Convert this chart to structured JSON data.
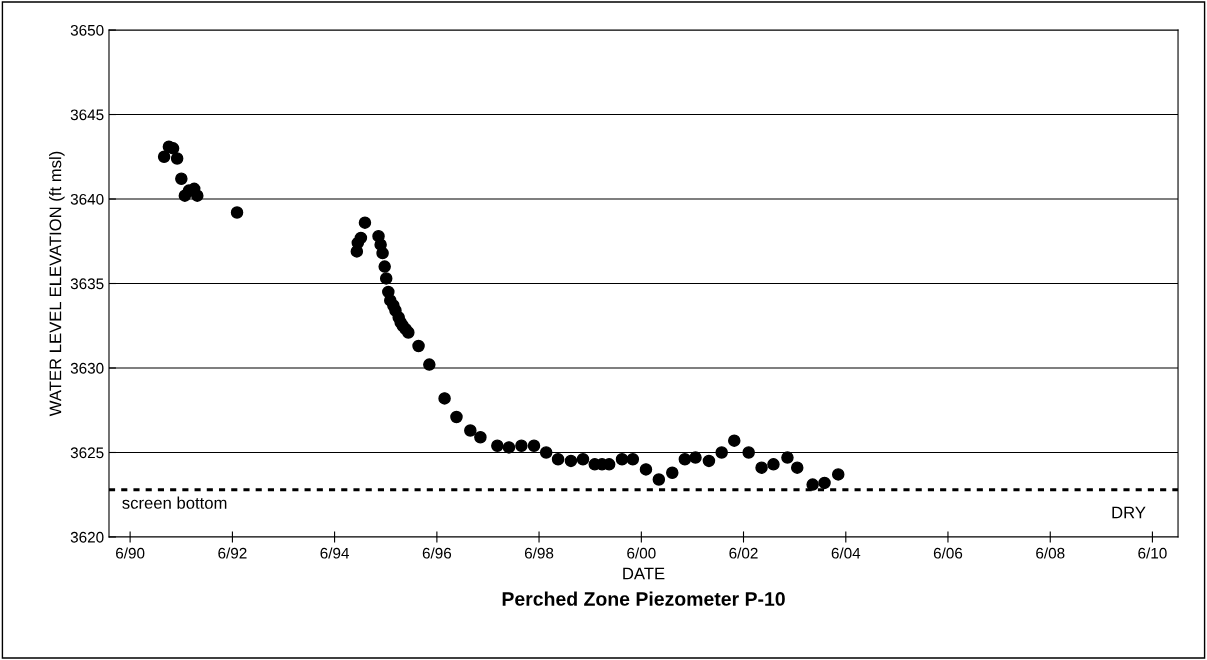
{
  "chart_data": {
    "type": "scatter",
    "title": "Perched Zone Piezometer P-10",
    "xlabel": "DATE",
    "ylabel": "WATER LEVEL ELEVATION (ft msl)",
    "x": [
      "1991-01-30",
      "1991-03-05",
      "1991-04-04",
      "1991-05-03",
      "1991-06-02",
      "1991-06-27",
      "1991-07-26",
      "1991-09-02",
      "1991-09-24",
      "1992-07-04",
      "1994-11-07",
      "1994-11-14",
      "1994-12-06",
      "1995-01-04",
      "1995-04-11",
      "1995-04-26",
      "1995-05-10",
      "1995-05-25",
      "1995-06-05",
      "1995-06-20",
      "1995-07-04",
      "1995-07-26",
      "1995-08-10",
      "1995-09-02",
      "1995-09-16",
      "1995-10-01",
      "1995-10-22",
      "1995-11-10",
      "1996-01-22",
      "1996-04-08",
      "1996-07-26",
      "1996-10-19",
      "1997-01-26",
      "1997-04-08",
      "1997-08-07",
      "1997-10-29",
      "1998-01-26",
      "1998-04-26",
      "1998-07-22",
      "1998-10-15",
      "1999-01-15",
      "1999-04-11",
      "1999-07-04",
      "1999-08-25",
      "1999-10-15",
      "2000-01-15",
      "2000-04-01",
      "2000-07-04",
      "2000-10-04",
      "2001-01-08",
      "2001-04-08",
      "2001-06-23",
      "2001-09-27",
      "2001-12-27",
      "2002-03-27",
      "2002-07-08",
      "2002-10-08",
      "2003-01-01",
      "2003-04-11",
      "2003-06-20",
      "2003-10-08",
      "2004-01-01",
      "2004-04-08"
    ],
    "values": [
      3642.5,
      3643.1,
      3643.0,
      3642.4,
      3641.2,
      3640.2,
      3640.5,
      3640.6,
      3640.2,
      3639.2,
      3636.9,
      3637.4,
      3637.7,
      3638.6,
      3637.8,
      3637.3,
      3636.8,
      3636.0,
      3635.3,
      3634.5,
      3634.0,
      3633.7,
      3633.4,
      3633.0,
      3632.7,
      3632.5,
      3632.3,
      3632.1,
      3631.3,
      3630.2,
      3628.2,
      3627.1,
      3626.3,
      3625.9,
      3625.4,
      3625.3,
      3625.4,
      3625.4,
      3625.0,
      3624.6,
      3624.5,
      3624.6,
      3624.3,
      3624.3,
      3624.3,
      3624.6,
      3624.6,
      3624.0,
      3623.4,
      3623.8,
      3624.6,
      3624.7,
      3624.5,
      3625.0,
      3625.7,
      3625.0,
      3624.1,
      3624.3,
      3624.7,
      3624.1,
      3623.1,
      3623.2,
      3623.7
    ],
    "color": "#000000",
    "marker": "circle",
    "xlim": [
      "1990-01-01",
      "2010-12-01"
    ],
    "xticks": [
      {
        "value": "1990-06-01",
        "label": "6/90"
      },
      {
        "value": "1992-06-01",
        "label": "6/92"
      },
      {
        "value": "1994-06-01",
        "label": "6/94"
      },
      {
        "value": "1996-06-01",
        "label": "6/96"
      },
      {
        "value": "1998-06-01",
        "label": "6/98"
      },
      {
        "value": "2000-06-01",
        "label": "6/00"
      },
      {
        "value": "2002-06-01",
        "label": "6/02"
      },
      {
        "value": "2004-06-01",
        "label": "6/04"
      },
      {
        "value": "2006-06-01",
        "label": "6/06"
      },
      {
        "value": "2008-06-01",
        "label": "6/08"
      },
      {
        "value": "2010-06-01",
        "label": "6/10"
      }
    ],
    "ylim": [
      3620,
      3650
    ],
    "yticks": [
      3620,
      3625,
      3630,
      3635,
      3640,
      3645,
      3650
    ],
    "grid": "y",
    "ref_lines": [
      {
        "axis": "y",
        "value": 3622.8,
        "label": "screen bottom",
        "color": "#000000",
        "line_style": "dotted"
      }
    ],
    "annotations": [
      "DRY"
    ]
  }
}
